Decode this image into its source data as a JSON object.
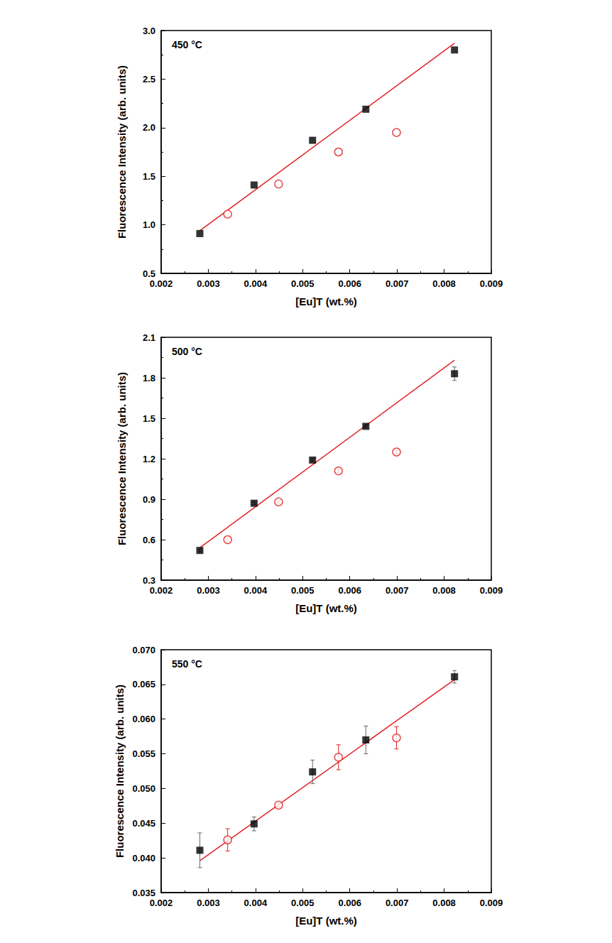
{
  "chart_data": [
    {
      "type": "scatter",
      "title": "450 °C",
      "xlabel": "[Eu]T (wt.%)",
      "ylabel": "Fluorescence Intensity (arb. units)",
      "xlim": [
        0.002,
        0.009
      ],
      "xticks": [
        0.002,
        0.003,
        0.004,
        0.005,
        0.006,
        0.007,
        0.008,
        0.009
      ],
      "ylim": [
        0.5,
        3.0
      ],
      "yticks": [
        0.5,
        {
          "value": 1,
          "label": "1.0"
        },
        1.5,
        {
          "value": 2,
          "label": "2.0"
        },
        2.5,
        {
          "value": 3,
          "label": "3.0"
        }
      ],
      "grid": false,
      "series": [
        {
          "type": "scatter",
          "marker": "square",
          "color": "#000000",
          "x": [
            0.00282,
            0.00397,
            0.00521,
            0.00634,
            0.00822
          ],
          "values": [
            0.91,
            1.41,
            1.87,
            2.19,
            2.8
          ]
        },
        {
          "type": "scatter",
          "marker": "open_circle",
          "color": "#e02020",
          "x": [
            0.00341,
            0.00449,
            0.00576,
            0.00699
          ],
          "values": [
            1.11,
            1.42,
            1.75,
            1.95
          ]
        },
        {
          "type": "line",
          "line_style": "solid",
          "color": "#e02020",
          "x": [
            0.00282,
            0.00822
          ],
          "values": [
            0.94,
            2.87
          ]
        }
      ]
    },
    {
      "type": "scatter",
      "title": "500 °C",
      "xlabel": "[Eu]T (wt.%)",
      "ylabel": "Fluorescence Intensity (arb. units)",
      "xlim": [
        0.002,
        0.009
      ],
      "xticks": [
        0.002,
        0.003,
        0.004,
        0.005,
        0.006,
        0.007,
        0.008,
        0.009
      ],
      "ylim": [
        0.3,
        2.1
      ],
      "yticks": [
        0.3,
        0.6,
        0.9,
        1.2,
        1.5,
        1.8,
        2.1
      ],
      "grid": false,
      "series": [
        {
          "type": "scatter",
          "marker": "square",
          "color": "#000000",
          "x": [
            0.00282,
            0.00397,
            0.00521,
            0.00634,
            0.00822
          ],
          "values": [
            0.52,
            0.87,
            1.19,
            1.44,
            1.83
          ],
          "errors": [
            0.01,
            0.01,
            0.01,
            0.01,
            0.05
          ]
        },
        {
          "type": "scatter",
          "marker": "open_circle",
          "color": "#e02020",
          "x": [
            0.00341,
            0.00449,
            0.00576,
            0.00699
          ],
          "values": [
            0.6,
            0.88,
            1.11,
            1.25
          ],
          "errors": [
            0.01,
            0.01,
            0.01,
            0.01
          ]
        },
        {
          "type": "line",
          "line_style": "solid",
          "color": "#e02020",
          "x": [
            0.00282,
            0.00822
          ],
          "values": [
            0.54,
            1.93
          ]
        }
      ]
    },
    {
      "type": "scatter",
      "title": "550 °C",
      "xlabel": "[Eu]T (wt.%)",
      "ylabel": "Fluorescence Intensity (arb. units)",
      "xlim": [
        0.002,
        0.009
      ],
      "xticks": [
        0.002,
        0.003,
        0.004,
        0.005,
        0.006,
        0.007,
        0.008,
        0.009
      ],
      "ylim": [
        0.035,
        0.07
      ],
      "yticks": [
        0.035,
        {
          "value": 0.04,
          "label": "0.040"
        },
        0.045,
        {
          "value": 0.05,
          "label": "0.050"
        },
        0.055,
        {
          "value": 0.06,
          "label": "0.060"
        },
        0.065,
        {
          "value": 0.07,
          "label": "0.070"
        }
      ],
      "grid": false,
      "series": [
        {
          "type": "scatter",
          "marker": "square",
          "color": "#000000",
          "x": [
            0.00282,
            0.00397,
            0.00521,
            0.00634,
            0.00822
          ],
          "values": [
            0.0411,
            0.0449,
            0.0524,
            0.057,
            0.0661
          ],
          "errors": [
            0.0025,
            0.001,
            0.0017,
            0.002,
            0.0009
          ]
        },
        {
          "type": "scatter",
          "marker": "open_circle",
          "color": "#e02020",
          "x": [
            0.00341,
            0.00449,
            0.00576,
            0.00699
          ],
          "values": [
            0.0426,
            0.0476,
            0.0545,
            0.0573
          ],
          "errors": [
            0.0016,
            0.0003,
            0.0018,
            0.0016
          ]
        },
        {
          "type": "line",
          "line_style": "solid",
          "color": "#e02020",
          "x": [
            0.00282,
            0.00822
          ],
          "values": [
            0.0396,
            0.0657
          ]
        }
      ]
    }
  ]
}
